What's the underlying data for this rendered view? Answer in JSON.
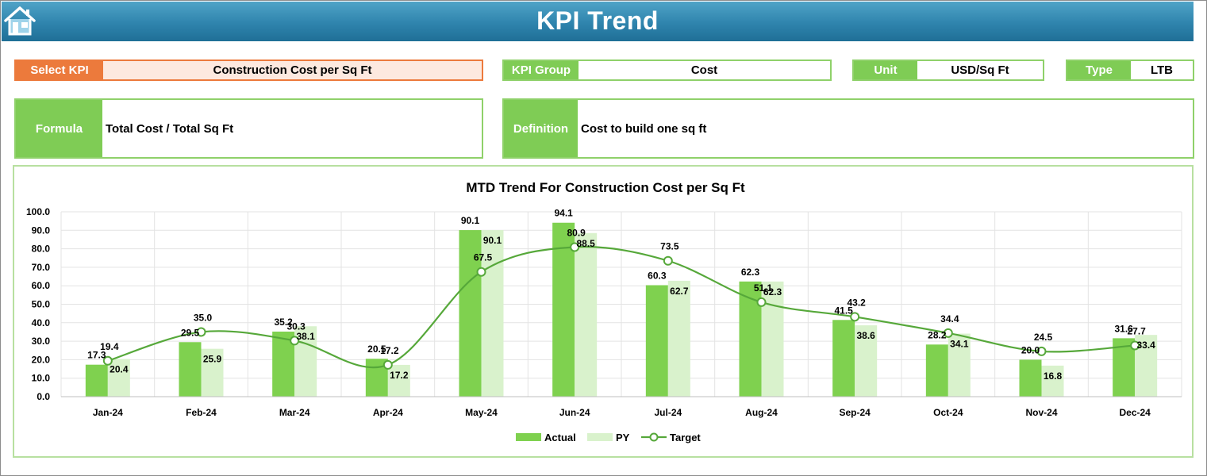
{
  "header": {
    "title": "KPI Trend",
    "home_icon": "home-icon"
  },
  "selectors": {
    "select_kpi_label": "Select KPI",
    "select_kpi_value": "Construction Cost per Sq Ft",
    "kpi_group_label": "KPI Group",
    "kpi_group_value": "Cost",
    "unit_label": "Unit",
    "unit_value": "USD/Sq Ft",
    "type_label": "Type",
    "type_value": "LTB"
  },
  "info": {
    "formula_label": "Formula",
    "formula_value": "Total Cost / Total Sq Ft",
    "definition_label": "Definition",
    "definition_value": "Cost to build one sq ft"
  },
  "colors": {
    "actual": "#7fd14f",
    "py": "#d9f2cc",
    "target": "#56a83a",
    "header": "#2f84ad",
    "accent_orange": "#ec7a3c"
  },
  "chart_data": {
    "type": "bar",
    "title": "MTD Trend For Construction Cost per Sq Ft",
    "categories": [
      "Jan-24",
      "Feb-24",
      "Mar-24",
      "Apr-24",
      "May-24",
      "Jun-24",
      "Jul-24",
      "Aug-24",
      "Sep-24",
      "Oct-24",
      "Nov-24",
      "Dec-24"
    ],
    "series": [
      {
        "name": "Actual",
        "type": "bar",
        "values": [
          17.3,
          29.5,
          35.2,
          20.5,
          90.1,
          94.1,
          60.3,
          62.3,
          41.5,
          28.2,
          20.0,
          31.6
        ]
      },
      {
        "name": "PY",
        "type": "bar",
        "values": [
          20.4,
          25.9,
          38.1,
          17.2,
          90.1,
          88.5,
          62.7,
          62.3,
          38.6,
          34.1,
          16.8,
          33.4
        ]
      },
      {
        "name": "Target",
        "type": "line",
        "values": [
          19.4,
          35.0,
          30.3,
          17.2,
          67.5,
          80.9,
          73.5,
          51.1,
          43.2,
          34.4,
          24.5,
          27.7
        ]
      }
    ],
    "y_ticks": [
      "0.0",
      "10.0",
      "20.0",
      "30.0",
      "40.0",
      "50.0",
      "60.0",
      "70.0",
      "80.0",
      "90.0",
      "100.0"
    ],
    "ylim": [
      0,
      100
    ],
    "grid": true,
    "legend": "bottom"
  }
}
